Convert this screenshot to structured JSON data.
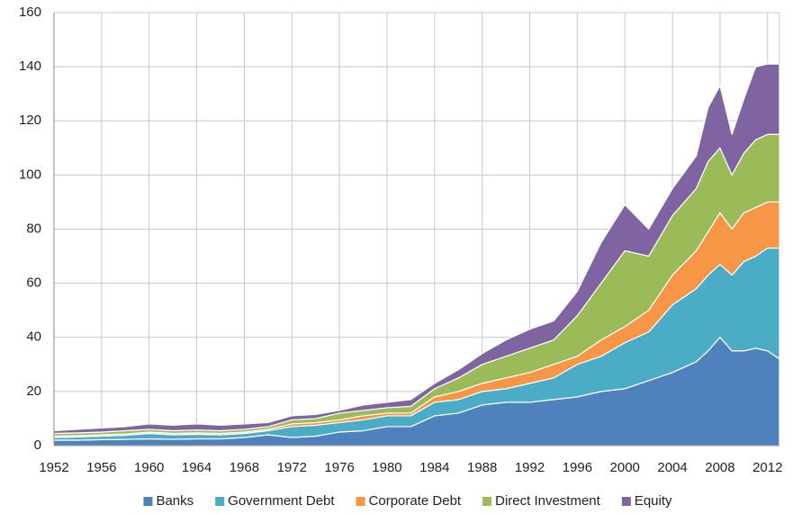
{
  "chart_data": {
    "type": "stacked_area",
    "x": [
      1952,
      1954,
      1956,
      1958,
      1960,
      1962,
      1964,
      1966,
      1968,
      1970,
      1972,
      1974,
      1976,
      1978,
      1980,
      1982,
      1984,
      1986,
      1988,
      1990,
      1992,
      1994,
      1996,
      1998,
      2000,
      2002,
      2004,
      2006,
      2007,
      2008,
      2009,
      2010,
      2011,
      2012,
      2013
    ],
    "series": [
      {
        "name": "Banks",
        "color": "#4f81bd",
        "values": [
          2,
          2,
          2.2,
          2.3,
          2.5,
          2.3,
          2.5,
          2.5,
          3,
          4,
          3,
          3.5,
          5,
          5.5,
          7,
          7,
          11,
          12,
          15,
          16,
          16,
          17,
          18,
          20,
          21,
          24,
          27,
          31,
          35,
          40,
          35,
          35,
          36,
          35,
          32
        ]
      },
      {
        "name": "Government Debt",
        "color": "#4bacc6",
        "values": [
          1,
          1.2,
          1.3,
          1.5,
          2,
          1.7,
          1.7,
          1.5,
          1.5,
          1.5,
          4,
          4,
          3.5,
          4,
          4,
          4,
          5,
          5,
          5,
          5,
          7,
          8,
          12,
          13,
          17,
          18,
          25,
          27,
          28,
          27,
          28,
          33,
          34,
          38,
          41
        ]
      },
      {
        "name": "Corporate Debt",
        "color": "#f79646",
        "values": [
          0.5,
          0.5,
          0.5,
          0.5,
          0.5,
          0.5,
          0.5,
          0.5,
          0.5,
          0.5,
          1,
          1,
          1,
          1.5,
          1,
          1,
          2,
          3,
          3,
          4,
          4,
          5,
          3,
          6,
          6,
          8,
          11,
          14,
          16,
          19,
          17,
          18,
          18,
          17,
          17
        ]
      },
      {
        "name": "Direct Investment",
        "color": "#9bbb59",
        "values": [
          1,
          1,
          1,
          1.2,
          1,
          1,
          1.1,
          1,
          1,
          1,
          1.5,
          1.5,
          2.5,
          2,
          2,
          2.5,
          3,
          5,
          7,
          8,
          9,
          9,
          15,
          21,
          28,
          20,
          22,
          23,
          26,
          24,
          20,
          22,
          25,
          25,
          25
        ]
      },
      {
        "name": "Equity",
        "color": "#8064a2",
        "values": [
          1,
          1.3,
          1.5,
          1.5,
          2,
          2,
          2.2,
          2,
          2,
          1.5,
          1.5,
          1.5,
          1,
          2,
          2,
          2.5,
          2,
          3,
          4,
          6,
          7,
          7,
          9,
          15,
          17,
          10,
          10,
          12,
          20,
          23,
          15,
          20,
          27,
          26,
          26
        ]
      }
    ],
    "xlim": [
      1952,
      2013
    ],
    "xticks": [
      1952,
      1956,
      1960,
      1964,
      1968,
      1972,
      1976,
      1980,
      1984,
      1988,
      1992,
      1996,
      2000,
      2004,
      2008,
      2012
    ],
    "ylim": [
      0,
      160
    ],
    "yticks": [
      0,
      20,
      40,
      60,
      80,
      100,
      120,
      140,
      160
    ],
    "grid": true,
    "legend": "bottom"
  }
}
